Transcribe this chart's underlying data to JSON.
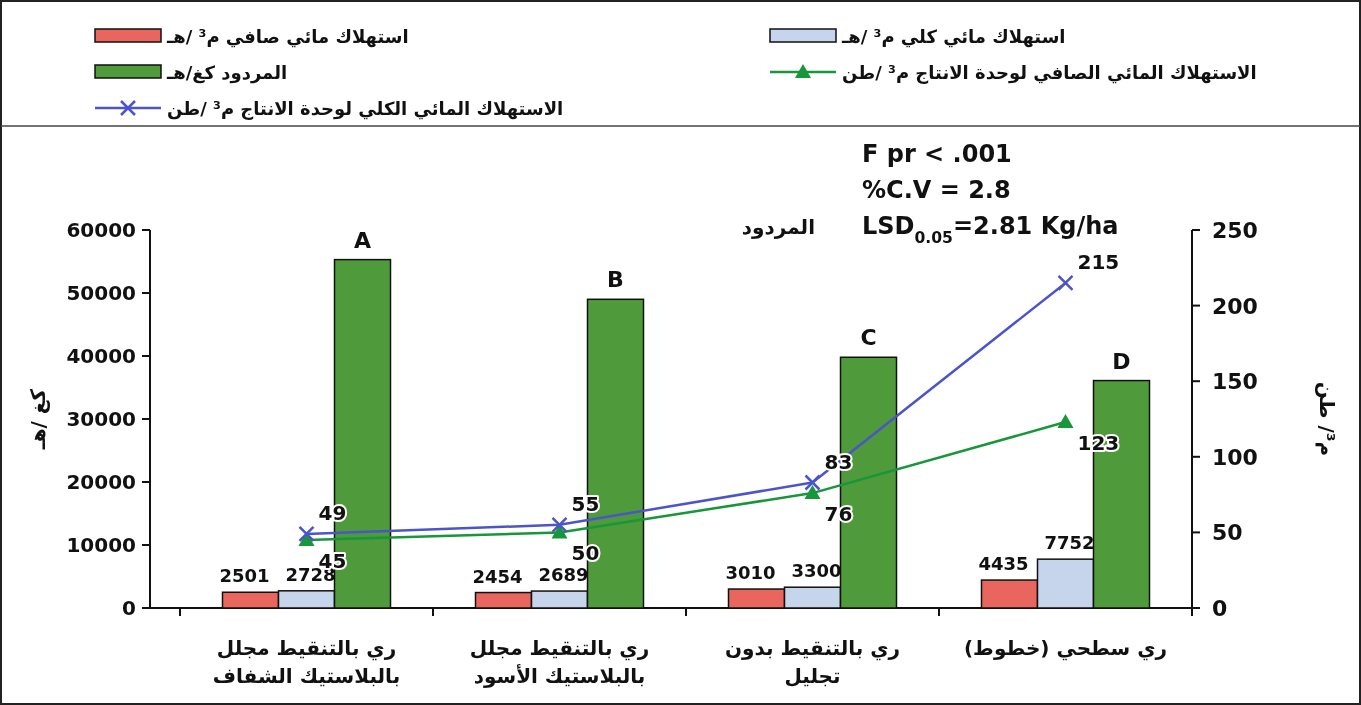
{
  "chart_data": {
    "type": "bar",
    "categories": [
      "ري بالتنقيط مجلل بالبلاستيك الشفاف",
      "ري بالتنقيط مجلل بالبلاستيك الأسود",
      "ري بالتنقيط بدون تجليل",
      "ري سطحي (خطوط)"
    ],
    "series": [
      {
        "name": "استهلاك مائي صافي م³ /هـ",
        "color": "#e8665e",
        "values": [
          2501,
          2454,
          3010,
          4435
        ],
        "value_labels": [
          "2501",
          "2454",
          "3010",
          "4435"
        ]
      },
      {
        "name": "استهلاك مائي كلي م³ /هـ",
        "color": "#c6d4ec",
        "values": [
          2728,
          2689,
          3300,
          7752
        ],
        "value_labels": [
          "2728",
          "2689",
          "3300",
          "7752"
        ]
      },
      {
        "name": "المردود كغ/هـ",
        "color": "#4f9a3a",
        "values": [
          55300,
          49000,
          39800,
          36100
        ]
      },
      {
        "name": "الاستهلاك المائي الصافي لوحدة الانتاج م³ /طن",
        "type": "line",
        "axis": "y2",
        "color": "#17963a",
        "marker": "triangle",
        "values": [
          45,
          50,
          76,
          123
        ],
        "value_labels": [
          "45",
          "50",
          "76",
          "123"
        ]
      },
      {
        "name": "الاستهلاك المائي الكلي لوحدة الانتاج م³ /طن",
        "type": "line",
        "axis": "y2",
        "color": "#4b55c9",
        "marker": "cross",
        "values": [
          49,
          55,
          83,
          215
        ],
        "value_labels": [
          "49",
          "55",
          "83",
          "215"
        ]
      }
    ],
    "ylabel": "كغ /هـ",
    "y2label": "م³/ طن",
    "ylim": [
      0,
      60000
    ],
    "yticks": [
      0,
      10000,
      20000,
      30000,
      40000,
      50000,
      60000
    ],
    "y2lim": [
      0,
      250
    ],
    "y2ticks": [
      0,
      50,
      100,
      150,
      200,
      250
    ],
    "legend": "top",
    "grid": false,
    "annotations": [
      "F pr < .001",
      "%C.V = 2.8",
      "LSD$_{0.05}$=2.81 Kg/ha",
      "المردود",
      "A",
      "B",
      "C",
      "D"
    ]
  }
}
